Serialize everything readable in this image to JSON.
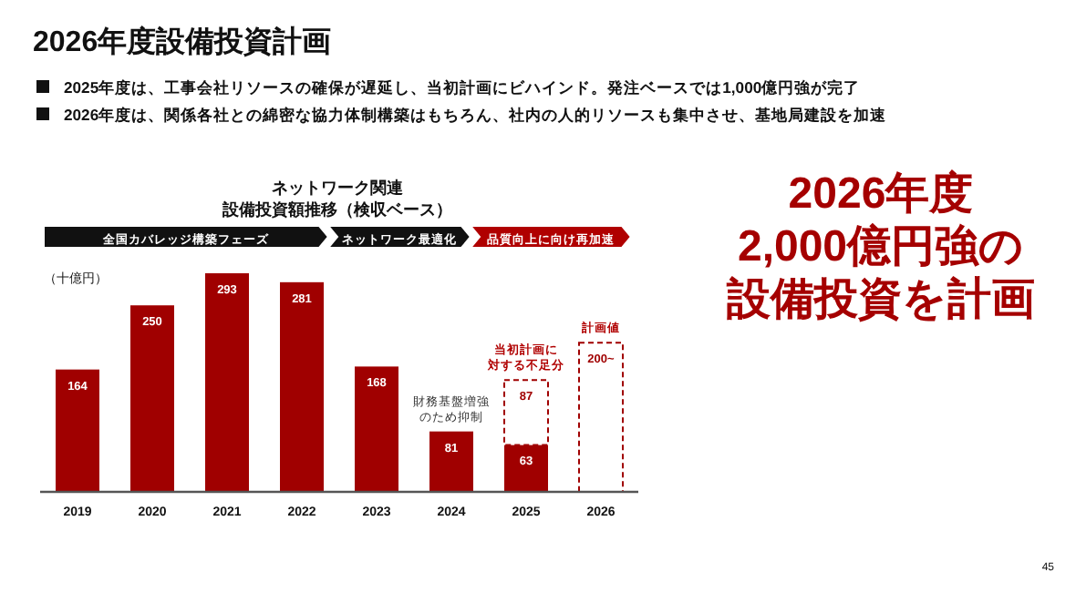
{
  "chart_data": {
    "type": "bar",
    "stacked": true,
    "title": "2026年度設備投資計画",
    "subtitle": "ネットワーク関連設備投資額推移（検収ベース）",
    "ylabel": "（十億円）",
    "categories": [
      "2019",
      "2020",
      "2021",
      "2022",
      "2023",
      "2024",
      "2025",
      "2026"
    ],
    "series": [
      {
        "color": "#a00000",
        "values": [
          164,
          250,
          293,
          281,
          168,
          81,
          63,
          null
        ],
        "value_labels": [
          "164",
          "250",
          "293",
          "281",
          "168",
          "81",
          "63",
          null
        ]
      },
      {
        "color": "#a00000",
        "line_style": "dashed",
        "values": [
          null,
          null,
          null,
          null,
          null,
          null,
          87,
          200
        ],
        "value_labels": [
          null,
          null,
          null,
          null,
          null,
          null,
          "87",
          "200~"
        ]
      }
    ],
    "annotations": [
      "2025年度は、工事会社リソースの確保が遅延し、当初計画にビハインド。発注ベースでは1,000億円強が完了",
      "2026年度は、関係各社との綿密な協力体制構築はもちろん、社内の人的リソースも集中させ、基地局建設を加速",
      "全国カバレッジ構築フェーズ",
      "ネットワーク最適化",
      "品質向上に向け再加速",
      {
        "text": "財務基盤増強のため抑制",
        "x": "2024",
        "y": 81
      },
      {
        "text": "当初計画に対する不足分",
        "x": "2025",
        "y": 150
      },
      {
        "text": "計画値",
        "x": "2026",
        "y": 200
      },
      "2026年度2,000億円強の設備投資を計画",
      "45"
    ]
  }
}
